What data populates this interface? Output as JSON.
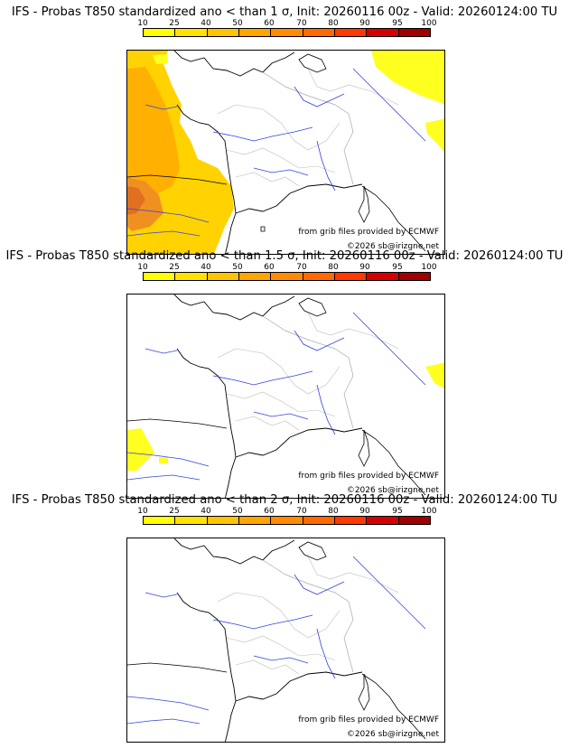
{
  "legend": {
    "ticks": [
      "10",
      "25",
      "40",
      "50",
      "60",
      "70",
      "80",
      "90",
      "95",
      "100"
    ],
    "colors": [
      "#ffff00",
      "#ffe200",
      "#ffc400",
      "#ffa500",
      "#ff8c00",
      "#ff6a00",
      "#ff3a00",
      "#d50000",
      "#a00000",
      "#600000"
    ]
  },
  "panels": [
    {
      "title": "IFS - Probas T850  standardized ano < than 1 σ, Init: 20260116 00z - Valid: 20260124:00 TU"
    },
    {
      "title": "IFS - Probas T850  standardized ano < than 1.5 σ, Init: 20260116 00z - Valid: 20260124:00 TU"
    },
    {
      "title": "IFS - Probas T850  standardized ano < than 2 σ, Init: 20260116 00z - Valid: 20260124:00 TU"
    }
  ],
  "credits": {
    "source": "from grib files provided by ECMWF",
    "copyright": "©2026 sb@irizgne.net"
  }
}
